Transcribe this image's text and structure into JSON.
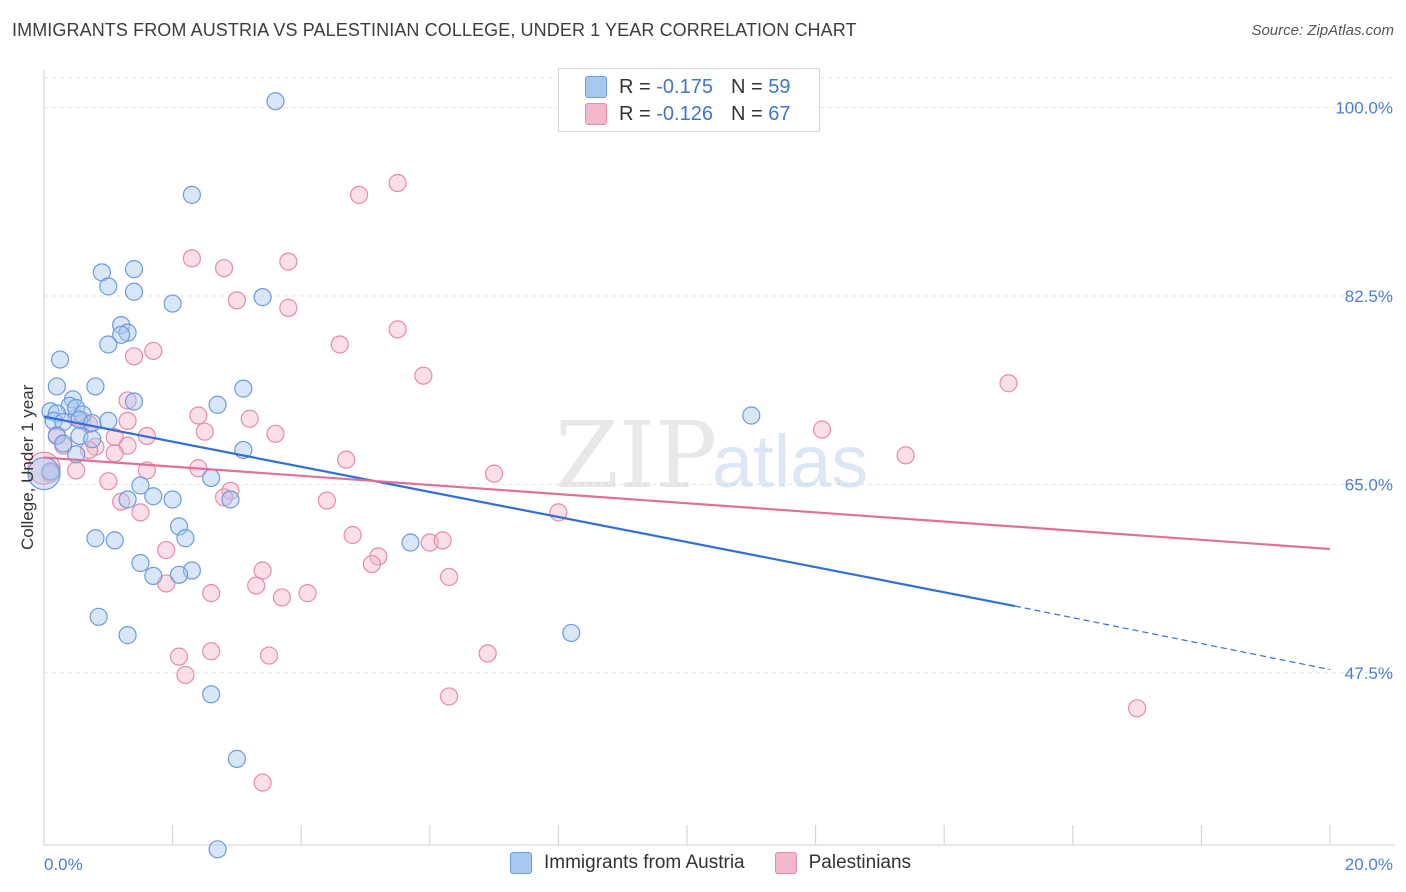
{
  "title": "IMMIGRANTS FROM AUSTRIA VS PALESTINIAN COLLEGE, UNDER 1 YEAR CORRELATION CHART",
  "source": "Source: ZipAtlas.com",
  "watermark": {
    "zip": "ZIP",
    "atlas": "atlas"
  },
  "colors": {
    "blue_fill": "#a9c8ef",
    "blue_stroke": "#6b9be0",
    "blue_line": "#2f6fd6",
    "pink_fill": "#f5b8cb",
    "pink_stroke": "#e88aa8",
    "pink_line": "#e0709a",
    "tick_text": "#4a7fd0",
    "grid": "#e4e4e4"
  },
  "legend": {
    "rows": [
      {
        "r_label": "R =",
        "r_value": "-0.175",
        "n_label": "N =",
        "n_value": "59"
      },
      {
        "r_label": "R =",
        "r_value": "-0.126",
        "n_label": "N =",
        "n_value": "67"
      }
    ]
  },
  "bottom_legend": [
    "Immigrants from Austria",
    "Palestinians"
  ],
  "chart_data": {
    "type": "scatter",
    "xlabel": "",
    "ylabel": "College, Under 1 year",
    "xlim": [
      0,
      20
    ],
    "ylim": [
      31.5,
      103.5
    ],
    "x_tick_labels": [
      "0.0%",
      "20.0%"
    ],
    "y_ticks": [
      100.0,
      82.5,
      65.0,
      47.5
    ],
    "y_tick_labels": [
      "100.0%",
      "82.5%",
      "65.0%",
      "47.5%"
    ],
    "grid": true,
    "legend_position": "top-center",
    "series": [
      {
        "name": "Immigrants from Austria",
        "r": -0.175,
        "n": 59,
        "trend": {
          "x0": 0,
          "y0": 71.3,
          "x1": 15.1,
          "y1": 53.7,
          "dashed_to_x": 20,
          "dashed_to_y": 47.8
        },
        "points": [
          [
            3.6,
            100.6
          ],
          [
            2.3,
            91.9
          ],
          [
            1.4,
            85.0
          ],
          [
            0.9,
            84.7
          ],
          [
            1.0,
            83.4
          ],
          [
            1.4,
            82.9
          ],
          [
            3.4,
            82.4
          ],
          [
            2.0,
            81.8
          ],
          [
            1.2,
            79.8
          ],
          [
            1.3,
            79.1
          ],
          [
            1.2,
            78.9
          ],
          [
            1.0,
            78.0
          ],
          [
            0.25,
            76.6
          ],
          [
            0.2,
            74.1
          ],
          [
            0.8,
            74.1
          ],
          [
            3.1,
            73.9
          ],
          [
            1.4,
            72.7
          ],
          [
            0.45,
            72.9
          ],
          [
            2.7,
            72.4
          ],
          [
            0.4,
            72.3
          ],
          [
            0.5,
            72.1
          ],
          [
            0.1,
            71.8
          ],
          [
            0.2,
            71.6
          ],
          [
            0.6,
            71.5
          ],
          [
            11.0,
            71.4
          ],
          [
            0.55,
            71.0
          ],
          [
            0.15,
            70.9
          ],
          [
            1.0,
            70.9
          ],
          [
            0.3,
            70.8
          ],
          [
            0.75,
            70.7
          ],
          [
            0.2,
            69.5
          ],
          [
            0.55,
            69.5
          ],
          [
            0.75,
            69.2
          ],
          [
            0.3,
            68.8
          ],
          [
            3.1,
            68.2
          ],
          [
            0.5,
            67.8
          ],
          [
            2.6,
            65.6
          ],
          [
            1.5,
            64.9
          ],
          [
            1.7,
            63.9
          ],
          [
            2.0,
            63.6
          ],
          [
            1.3,
            63.6
          ],
          [
            2.9,
            63.6
          ],
          [
            2.1,
            61.1
          ],
          [
            0.8,
            60.0
          ],
          [
            1.1,
            59.8
          ],
          [
            2.2,
            60.0
          ],
          [
            5.7,
            59.6
          ],
          [
            1.5,
            57.7
          ],
          [
            2.3,
            57.0
          ],
          [
            2.1,
            56.6
          ],
          [
            1.7,
            56.5
          ],
          [
            0.85,
            52.7
          ],
          [
            1.3,
            51.0
          ],
          [
            8.2,
            51.2
          ],
          [
            2.6,
            45.5
          ],
          [
            3.0,
            39.5
          ],
          [
            2.7,
            31.1
          ],
          [
            0.1,
            66.2
          ],
          [
            0.0,
            66.0
          ]
        ]
      },
      {
        "name": "Palestinians",
        "r": -0.126,
        "n": 67,
        "trend": {
          "x0": 0,
          "y0": 67.5,
          "x1": 20,
          "y1": 59.0
        },
        "points": [
          [
            5.5,
            93.0
          ],
          [
            4.9,
            91.9
          ],
          [
            2.3,
            86.0
          ],
          [
            3.8,
            85.7
          ],
          [
            2.8,
            85.1
          ],
          [
            3.0,
            82.1
          ],
          [
            3.8,
            81.4
          ],
          [
            5.5,
            79.4
          ],
          [
            4.6,
            78.0
          ],
          [
            1.7,
            77.4
          ],
          [
            1.4,
            76.9
          ],
          [
            5.9,
            75.1
          ],
          [
            15.0,
            74.4
          ],
          [
            1.3,
            72.8
          ],
          [
            2.4,
            71.4
          ],
          [
            3.2,
            71.1
          ],
          [
            0.5,
            71.2
          ],
          [
            0.6,
            70.9
          ],
          [
            1.3,
            70.9
          ],
          [
            0.7,
            70.6
          ],
          [
            2.5,
            69.9
          ],
          [
            3.6,
            69.7
          ],
          [
            0.2,
            69.6
          ],
          [
            1.6,
            69.5
          ],
          [
            12.1,
            70.1
          ],
          [
            1.1,
            69.4
          ],
          [
            1.3,
            68.6
          ],
          [
            0.3,
            68.6
          ],
          [
            0.8,
            68.5
          ],
          [
            0.7,
            68.2
          ],
          [
            1.1,
            67.9
          ],
          [
            4.7,
            67.3
          ],
          [
            13.4,
            67.7
          ],
          [
            0.5,
            66.3
          ],
          [
            1.6,
            66.3
          ],
          [
            2.4,
            66.5
          ],
          [
            7.0,
            66.0
          ],
          [
            1.0,
            65.3
          ],
          [
            2.9,
            64.4
          ],
          [
            2.8,
            63.8
          ],
          [
            4.4,
            63.5
          ],
          [
            1.2,
            63.4
          ],
          [
            1.5,
            62.4
          ],
          [
            8.0,
            62.4
          ],
          [
            4.8,
            60.3
          ],
          [
            6.0,
            59.6
          ],
          [
            6.2,
            59.8
          ],
          [
            5.2,
            58.3
          ],
          [
            5.1,
            57.6
          ],
          [
            1.9,
            58.9
          ],
          [
            3.4,
            57.0
          ],
          [
            6.3,
            56.4
          ],
          [
            1.9,
            55.8
          ],
          [
            3.3,
            55.6
          ],
          [
            2.6,
            54.9
          ],
          [
            4.1,
            54.9
          ],
          [
            3.7,
            54.5
          ],
          [
            2.1,
            49.0
          ],
          [
            2.6,
            49.5
          ],
          [
            3.5,
            49.1
          ],
          [
            6.9,
            49.3
          ],
          [
            2.2,
            47.3
          ],
          [
            6.3,
            45.3
          ],
          [
            17.0,
            44.2
          ],
          [
            3.4,
            37.3
          ],
          [
            0.0,
            66.5
          ],
          [
            0.1,
            66.0
          ]
        ]
      }
    ]
  }
}
